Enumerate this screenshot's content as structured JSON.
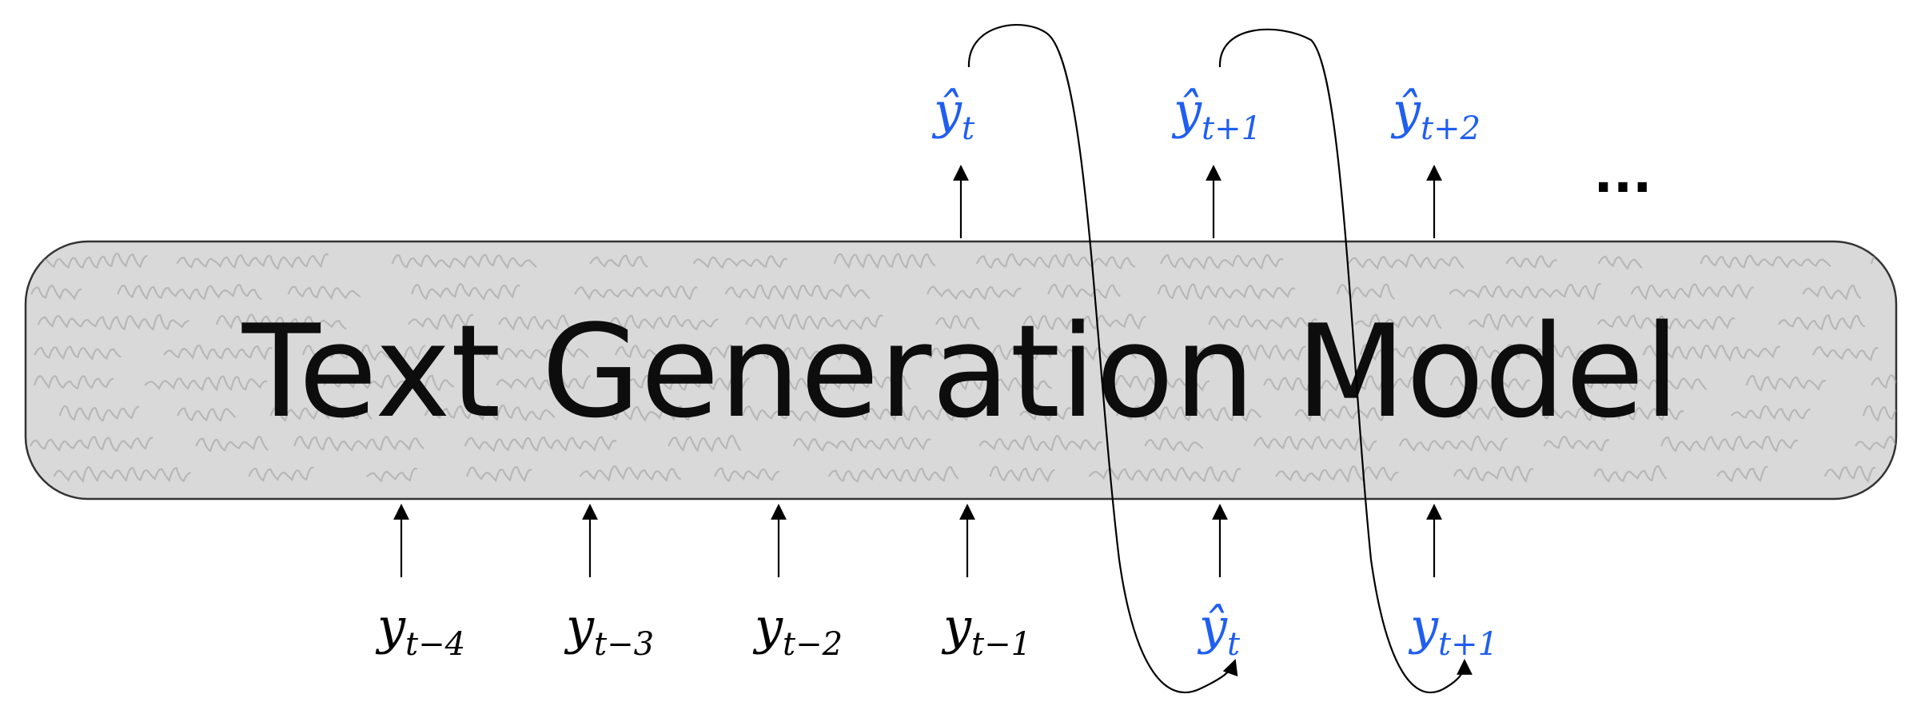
{
  "model": {
    "label": "Text Generation Model"
  },
  "colors": {
    "input_token": "#000000",
    "predicted_token": "#1f5ef0",
    "box_fill": "#d9d9d9",
    "box_stroke": "#333333"
  },
  "inputs": [
    {
      "base": "y",
      "sub": "t−4",
      "predicted": false
    },
    {
      "base": "y",
      "sub": "t−3",
      "predicted": false
    },
    {
      "base": "y",
      "sub": "t−2",
      "predicted": false
    },
    {
      "base": "y",
      "sub": "t−1",
      "predicted": false
    },
    {
      "base": "ŷ",
      "sub": "t",
      "predicted": true
    },
    {
      "base": "y",
      "sub": "t+1",
      "predicted": true
    }
  ],
  "outputs": [
    {
      "base": "ŷ",
      "sub": "t"
    },
    {
      "base": "ŷ",
      "sub": "t+1"
    },
    {
      "base": "ŷ",
      "sub": "t+2"
    }
  ],
  "ellipsis": "..."
}
